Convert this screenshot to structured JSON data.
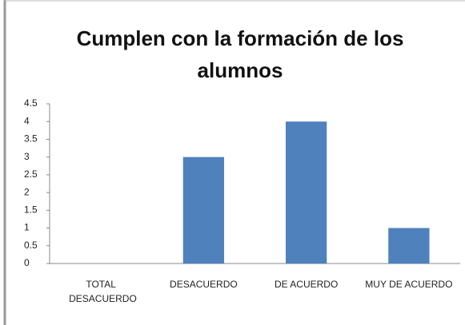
{
  "chart_data": {
    "type": "bar",
    "title": "Cumplen con la formación de los alumnos",
    "categories": [
      "TOTAL DESACUERDO",
      "DESACUERDO",
      "DE ACUERDO",
      "MUY DE ACUERDO"
    ],
    "values": [
      0,
      3,
      4,
      1
    ],
    "color": "#4f81bd",
    "ylim": [
      0,
      4.5
    ],
    "yticks": [
      0,
      0.5,
      1,
      1.5,
      2,
      2.5,
      3,
      3.5,
      4,
      4.5
    ],
    "grid": false
  }
}
